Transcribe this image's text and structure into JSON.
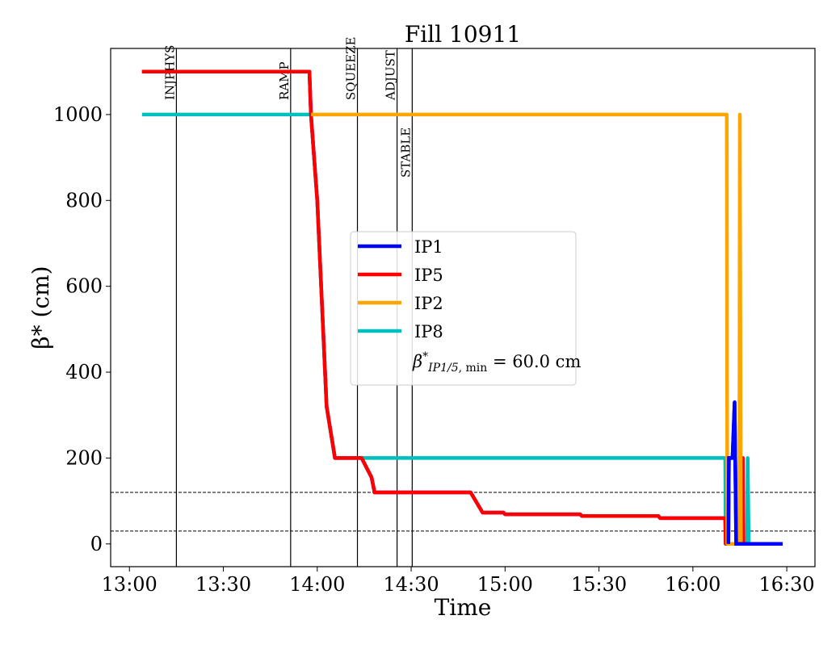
{
  "chart_data": {
    "type": "line",
    "title": "Fill 10911",
    "xlabel": "Time",
    "ylabel": "β* (cm)",
    "xlim": [
      "12:54:00",
      "16:39:00"
    ],
    "ylim": [
      -53,
      1154
    ],
    "xticks": [
      "13:00",
      "13:30",
      "14:00",
      "14:30",
      "15:00",
      "15:30",
      "16:00",
      "16:30"
    ],
    "yticks": [
      0,
      200,
      400,
      600,
      800,
      1000
    ],
    "grid": false,
    "legend_position": "center",
    "legend_extra": "β*IP1/5, min = 60.0 cm",
    "events": [
      {
        "label": "INJPHYS",
        "time": "13:15:00"
      },
      {
        "label": "RAMP",
        "time": "13:51:30"
      },
      {
        "label": "SQUEEZE",
        "time": "14:12:50"
      },
      {
        "label": "ADJUST",
        "time": "14:25:30"
      },
      {
        "label": "STABLE",
        "time": "14:30:20"
      }
    ],
    "hlines": [
      120,
      30
    ],
    "series": [
      {
        "name": "IP1",
        "color": "#0000ff",
        "points": [
          [
            "13:04:00",
            1100
          ],
          [
            "13:57:30",
            1100
          ],
          [
            "13:58:00",
            1000
          ],
          [
            "14:00:00",
            800
          ],
          [
            "14:03:00",
            320
          ],
          [
            "14:05:40",
            200
          ],
          [
            "14:14:10",
            200
          ],
          [
            "14:17:20",
            155
          ],
          [
            "14:18:20",
            120
          ],
          [
            "14:49:00",
            120
          ],
          [
            "14:52:50",
            73
          ],
          [
            "14:59:30",
            73
          ],
          [
            "15:00:00",
            69
          ],
          [
            "15:24:00",
            69
          ],
          [
            "15:24:30",
            65
          ],
          [
            "15:49:00",
            65
          ],
          [
            "15:49:30",
            60
          ],
          [
            "16:10:20",
            60
          ],
          [
            "16:10:30",
            0
          ],
          [
            "16:11:20",
            0
          ],
          [
            "16:11:30",
            200
          ],
          [
            "16:12:40",
            200
          ],
          [
            "16:13:20",
            330
          ],
          [
            "16:13:50",
            0
          ],
          [
            "16:28:40",
            0
          ]
        ]
      },
      {
        "name": "IP5",
        "color": "#ff0000",
        "points": [
          [
            "13:04:00",
            1100
          ],
          [
            "13:57:30",
            1100
          ],
          [
            "13:58:00",
            1000
          ],
          [
            "14:00:00",
            800
          ],
          [
            "14:03:00",
            320
          ],
          [
            "14:05:40",
            200
          ],
          [
            "14:14:10",
            200
          ],
          [
            "14:17:20",
            155
          ],
          [
            "14:18:20",
            120
          ],
          [
            "14:49:00",
            120
          ],
          [
            "14:52:50",
            73
          ],
          [
            "14:59:30",
            73
          ],
          [
            "15:00:00",
            69
          ],
          [
            "15:24:00",
            69
          ],
          [
            "15:24:30",
            65
          ],
          [
            "15:49:00",
            65
          ],
          [
            "15:49:30",
            60
          ],
          [
            "16:10:20",
            60
          ],
          [
            "16:10:30",
            0
          ],
          [
            "16:15:20",
            0
          ],
          [
            "16:15:30",
            200
          ],
          [
            "16:16:00",
            200
          ],
          [
            "16:16:10",
            0
          ],
          [
            "16:28:40",
            0
          ]
        ]
      },
      {
        "name": "IP2",
        "color": "#ffa500",
        "points": [
          [
            "13:58:00",
            1000
          ],
          [
            "16:10:50",
            1000
          ],
          [
            "16:11:00",
            0
          ],
          [
            "16:14:50",
            0
          ],
          [
            "16:15:00",
            1000
          ],
          [
            "16:15:20",
            0
          ],
          [
            "16:28:40",
            0
          ]
        ]
      },
      {
        "name": "IP8",
        "color": "#00bfbf",
        "points": [
          [
            "13:04:00",
            1000
          ],
          [
            "13:58:00",
            1000
          ],
          [
            "14:00:00",
            800
          ],
          [
            "14:03:00",
            320
          ],
          [
            "14:05:40",
            200
          ],
          [
            "16:10:20",
            200
          ],
          [
            "16:10:30",
            0
          ],
          [
            "16:17:20",
            0
          ],
          [
            "16:17:30",
            200
          ],
          [
            "16:17:50",
            0
          ],
          [
            "16:28:40",
            0
          ]
        ]
      }
    ]
  }
}
